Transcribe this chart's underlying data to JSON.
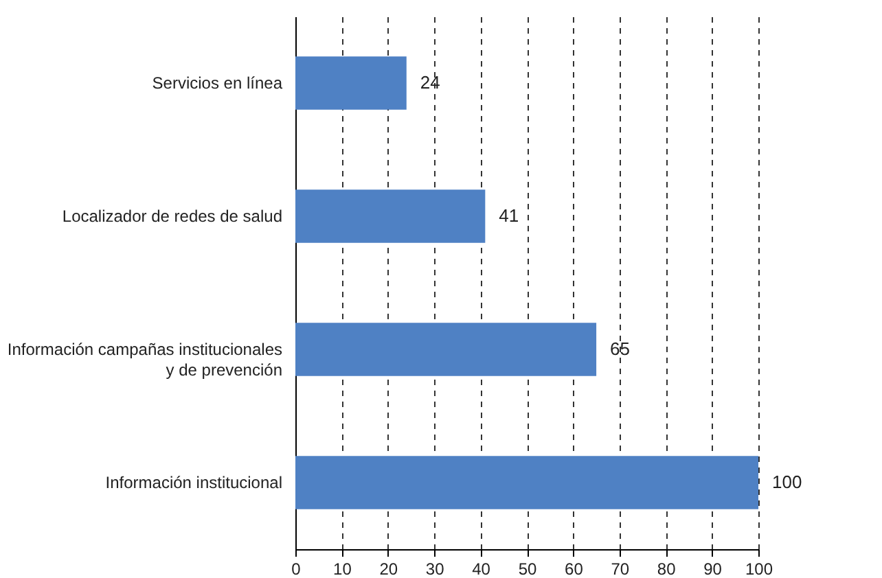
{
  "chart_data": {
    "type": "bar",
    "orientation": "horizontal",
    "categories": [
      "Servicios en línea",
      "Localizador de redes de salud",
      "Información campañas institucionales y de prevención",
      "Información institucional"
    ],
    "values": [
      24,
      41,
      65,
      100
    ],
    "color": "#4f81c4",
    "xlim": [
      0,
      100
    ],
    "xticks": [
      0,
      10,
      20,
      30,
      40,
      50,
      60,
      70,
      80,
      90,
      100
    ],
    "grid": "x",
    "data_labels": true
  }
}
